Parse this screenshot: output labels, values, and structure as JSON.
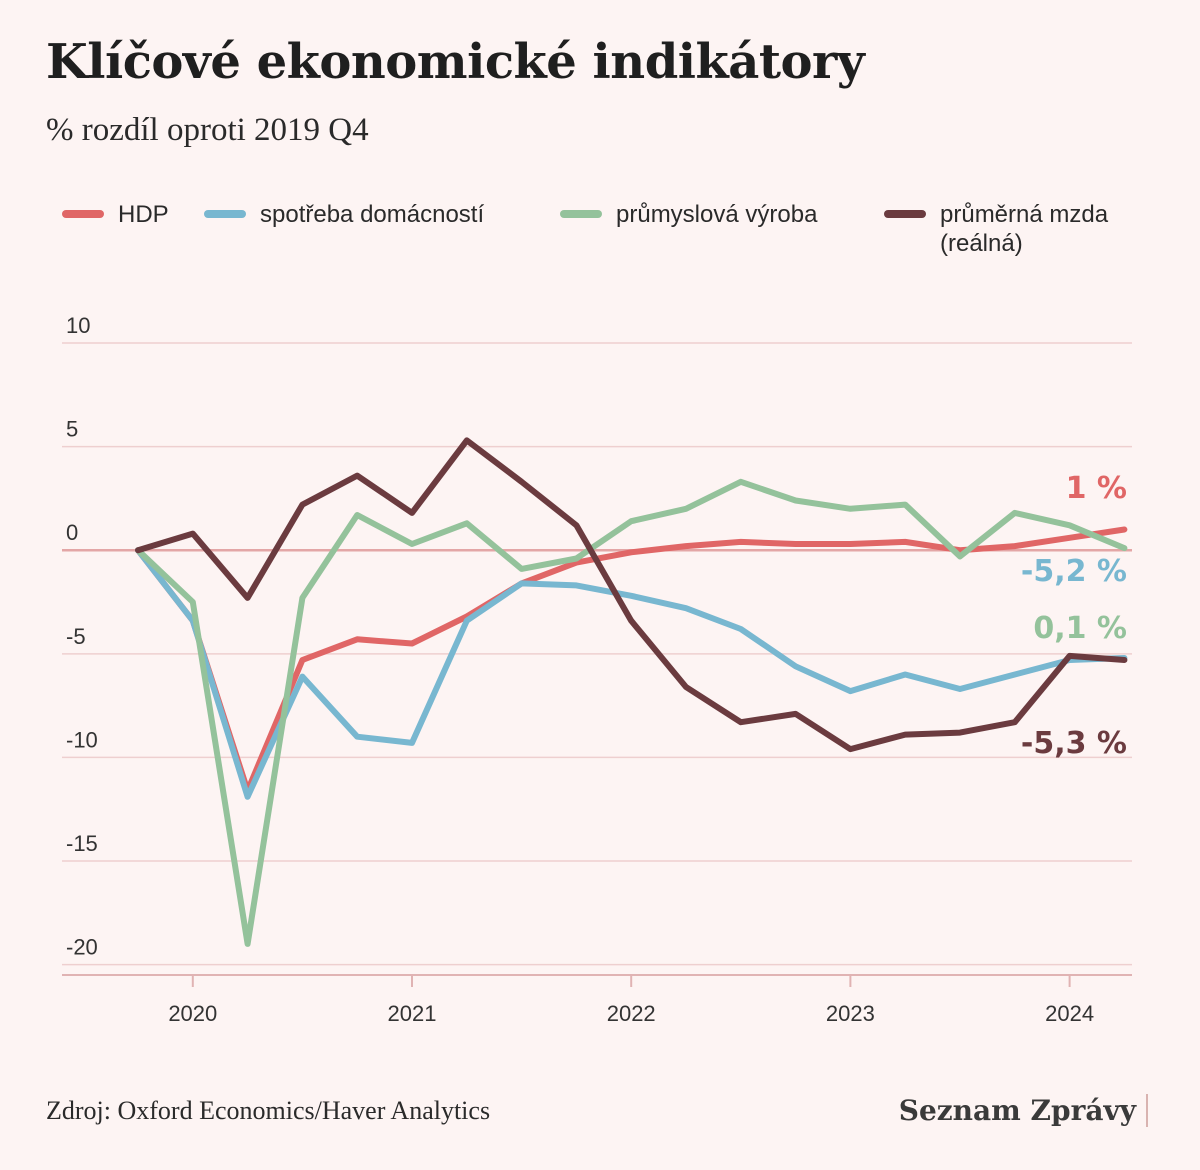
{
  "header": {
    "title": "Klíčové ekonomické indikátory",
    "subtitle": "% rozdíl oproti 2019 Q4"
  },
  "footer": {
    "source": "Zdroj: Oxford Economics/Haver Analytics",
    "brand": "Seznam Zprávy"
  },
  "chart_data": {
    "type": "line",
    "x": [
      "2019 Q4",
      "2020 Q1",
      "2020 Q2",
      "2020 Q3",
      "2020 Q4",
      "2021 Q1",
      "2021 Q2",
      "2021 Q3",
      "2021 Q4",
      "2022 Q1",
      "2022 Q2",
      "2022 Q3",
      "2022 Q4",
      "2023 Q1",
      "2023 Q2",
      "2023 Q3",
      "2023 Q4",
      "2024 Q1",
      "2024 Q2"
    ],
    "x_tick_labels": [
      "2020",
      "2021",
      "2022",
      "2023",
      "2024"
    ],
    "x_tick_positions": [
      "2020 Q1",
      "2021 Q1",
      "2022 Q1",
      "2023 Q1",
      "2024 Q1"
    ],
    "y_ticks": [
      10,
      5,
      0,
      -5,
      -10,
      -15,
      -20
    ],
    "y_tick_labels": [
      "10",
      "5",
      "0",
      "-5",
      "-10",
      "-15",
      "-20"
    ],
    "ylim": [
      -20.5,
      10
    ],
    "grid": true,
    "legend_position": "top",
    "series": [
      {
        "name": "HDP",
        "color": "#e06666",
        "values": [
          0,
          -3.4,
          -11.6,
          -5.3,
          -4.3,
          -4.5,
          -3.2,
          -1.6,
          -0.6,
          -0.1,
          0.2,
          0.4,
          0.3,
          0.3,
          0.4,
          0.0,
          0.2,
          0.6,
          1.0
        ],
        "end_label": "1 %"
      },
      {
        "name": "spotřeba domácností",
        "color": "#78b7d0",
        "values": [
          0,
          -3.4,
          -11.9,
          -6.1,
          -9.0,
          -9.3,
          -3.4,
          -1.6,
          -1.7,
          -2.2,
          -2.8,
          -3.8,
          -5.6,
          -6.8,
          -6.0,
          -6.7,
          -6.0,
          -5.3,
          -5.2
        ],
        "end_label": "-5,2 %"
      },
      {
        "name": "průmyslová výroba",
        "color": "#94c29b",
        "values": [
          0,
          -2.5,
          -19.0,
          -2.3,
          1.7,
          0.3,
          1.3,
          -0.9,
          -0.4,
          1.4,
          2.0,
          3.3,
          2.4,
          2.0,
          2.2,
          -0.3,
          1.8,
          1.2,
          0.1
        ],
        "end_label": "0,1 %"
      },
      {
        "name": "průměrná mzda (reálná)",
        "name_lines": [
          "průměrná mzda",
          "(reálná)"
        ],
        "color": "#6b3b3f",
        "values": [
          0,
          0.8,
          -2.3,
          2.2,
          3.6,
          1.8,
          5.3,
          3.3,
          1.2,
          -3.4,
          -6.6,
          -8.3,
          -7.9,
          -9.6,
          -8.9,
          -8.8,
          -8.3,
          -5.1,
          -5.3
        ],
        "end_label": "-5,3 %"
      }
    ]
  }
}
